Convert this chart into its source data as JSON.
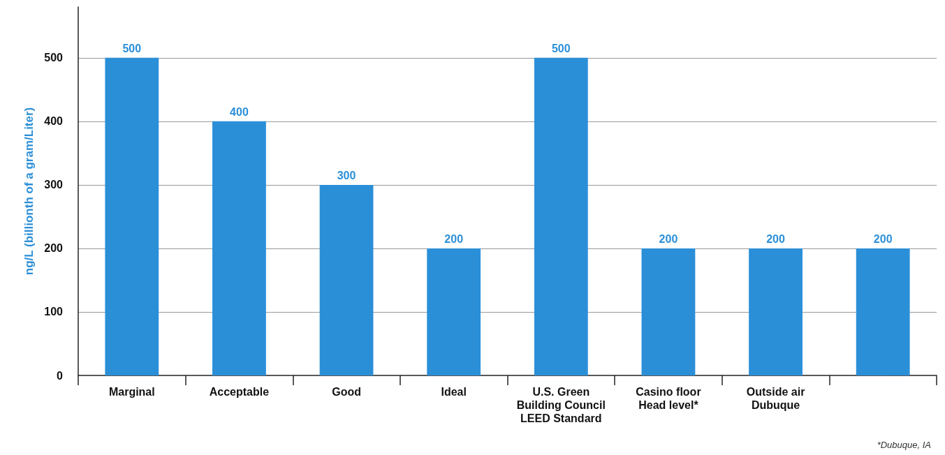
{
  "chart_data": {
    "type": "bar",
    "categories": [
      "Marginal",
      "Acceptable",
      "Good",
      "Ideal",
      "U.S. Green\nBuilding Council\nLEED Standard",
      "Casino floor\nHead level*",
      "Outside air\nDubuque",
      null
    ],
    "values": [
      500,
      400,
      300,
      200,
      500,
      200,
      200,
      200
    ],
    "color": "#2b8fd8",
    "ylabel": "ng/L (billionth of a gram/Liter)",
    "ylim": [
      0,
      580
    ],
    "yticks": [
      0,
      100,
      200,
      300,
      400,
      500
    ],
    "grid": "y",
    "data_labels": true,
    "annotations": [
      "*Dubuque, IA"
    ]
  }
}
